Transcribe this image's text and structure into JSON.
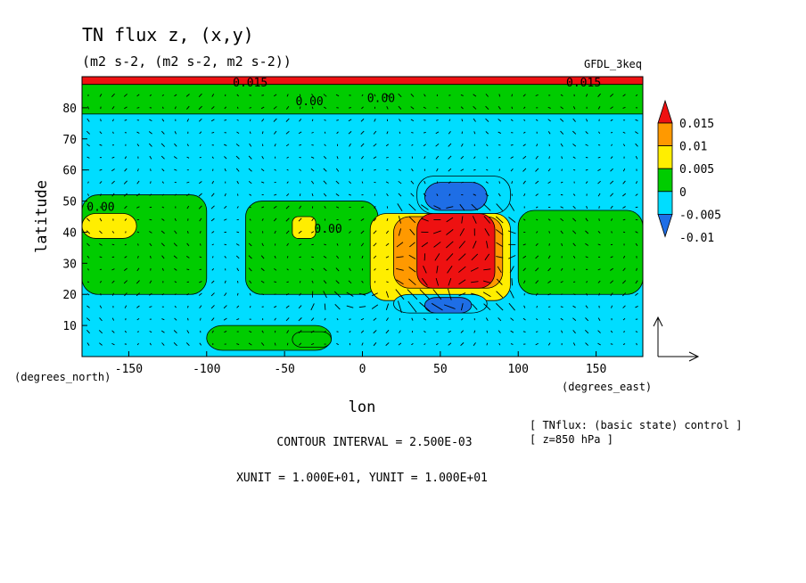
{
  "chart_data": {
    "type": "heatmap",
    "title": "TN flux z, (x,y)",
    "subtitle": "(m2 s-2, (m2 s-2, m2 s-2))",
    "model_label": "GFDL_3keq",
    "xlabel": "lon",
    "ylabel": "latitude",
    "x_unit_label": "(degrees_east)",
    "y_unit_label": "(degrees_north)",
    "xlim": [
      -180,
      180
    ],
    "ylim": [
      0,
      90
    ],
    "x_ticks": [
      -150,
      -100,
      -50,
      0,
      50,
      100,
      150
    ],
    "x_tick_labels": [
      "-150",
      "-100",
      "-50",
      "0",
      "50",
      "100",
      "150"
    ],
    "y_ticks": [
      10,
      20,
      30,
      40,
      50,
      60,
      70,
      80
    ],
    "y_tick_labels": [
      "10",
      "20",
      "30",
      "40",
      "50",
      "60",
      "70",
      "80"
    ],
    "colorbar": {
      "levels": [
        -0.01,
        -0.005,
        0,
        0.005,
        0.01,
        0.015
      ],
      "level_labels": [
        "-0.01",
        "-0.005",
        "0",
        "0.005",
        "0.01",
        "0.015"
      ],
      "colors": [
        "#1e6ee6",
        "#00ddff",
        "#00cc00",
        "#ffee00",
        "#ff9900",
        "#ee1111"
      ]
    },
    "background_color": "#00ddff",
    "contour_labels": [
      {
        "text": "0.00",
        "lon": -34,
        "lat": 82
      },
      {
        "text": "0.00",
        "lon": 12,
        "lat": 83
      },
      {
        "text": "0.00",
        "lon": -22,
        "lat": 41
      },
      {
        "text": "0.00",
        "lon": -168,
        "lat": 48
      },
      {
        "text": "0.015",
        "lon": -72,
        "lat": 88
      },
      {
        "text": "0.015",
        "lon": 142,
        "lat": 88
      }
    ],
    "regions": [
      {
        "value": 0.015,
        "lon": [
          -180,
          180
        ],
        "lat": [
          87.5,
          90
        ]
      },
      {
        "value": 0.0,
        "lon": [
          -180,
          180
        ],
        "lat": [
          78,
          87.5
        ]
      },
      {
        "value": 0.0,
        "lon": [
          -180,
          -100
        ],
        "lat": [
          20,
          52
        ]
      },
      {
        "value": 0.005,
        "lon": [
          -180,
          -145
        ],
        "lat": [
          38,
          46
        ]
      },
      {
        "value": 0.0,
        "lon": [
          -75,
          10
        ],
        "lat": [
          20,
          50
        ]
      },
      {
        "value": 0.005,
        "lon": [
          -45,
          -30
        ],
        "lat": [
          38,
          45
        ]
      },
      {
        "value": 0.005,
        "lon": [
          5,
          95
        ],
        "lat": [
          18,
          46
        ]
      },
      {
        "value": 0.01,
        "lon": [
          20,
          90
        ],
        "lat": [
          22,
          45
        ]
      },
      {
        "value": 0.015,
        "lon": [
          35,
          85
        ],
        "lat": [
          22,
          46
        ]
      },
      {
        "value": -0.005,
        "lon": [
          35,
          95
        ],
        "lat": [
          46,
          58
        ]
      },
      {
        "value": -0.01,
        "lon": [
          40,
          80
        ],
        "lat": [
          47,
          56
        ]
      },
      {
        "value": -0.005,
        "lon": [
          20,
          80
        ],
        "lat": [
          14,
          20
        ]
      },
      {
        "value": -0.01,
        "lon": [
          40,
          70
        ],
        "lat": [
          14,
          19
        ]
      },
      {
        "value": 0.0,
        "lon": [
          100,
          180
        ],
        "lat": [
          20,
          47
        ]
      },
      {
        "value": 0.0,
        "lon": [
          -100,
          -20
        ],
        "lat": [
          2,
          10
        ]
      },
      {
        "value": 0.0,
        "lon": [
          -45,
          -20
        ],
        "lat": [
          3,
          8
        ]
      }
    ],
    "vector_reference": {
      "xunit": 10,
      "yunit": 10
    }
  },
  "annotations": {
    "contour_interval": "CONTOUR INTERVAL = 2.500E-03",
    "units_line": "XUNIT = 1.000E+01, YUNIT = 1.000E+01",
    "info_line1": "[ TNflux: (basic state) control ]",
    "info_line2": "[ z=850 hPa ]"
  }
}
